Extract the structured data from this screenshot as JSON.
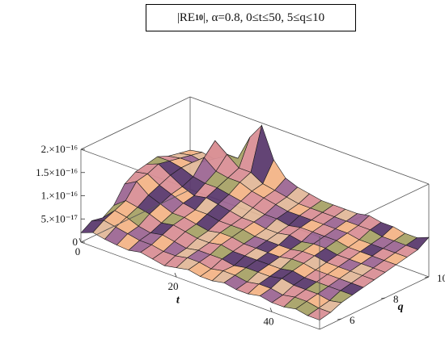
{
  "chart_data": {
    "type": "surface",
    "title": "|RE10|, α=0.8, 0≤t≤50, 5≤q≤10",
    "title_parts": {
      "prefix": "|RE",
      "subscript": "10",
      "suffix": "|, α=0.8, 0≤t≤50, 5≤q≤10"
    },
    "xlabel": "t",
    "ylabel": "q",
    "zlabel": "",
    "xlim": [
      0,
      50
    ],
    "ylim": [
      5,
      10
    ],
    "zlim": [
      0,
      2e-16
    ],
    "x_ticks": [
      "0",
      "20",
      "40"
    ],
    "x_tick_values": [
      0,
      20,
      40
    ],
    "y_ticks": [
      "6",
      "8",
      "10"
    ],
    "y_tick_values": [
      6,
      8,
      10
    ],
    "z_ticks": [
      "0",
      "5.×10⁻¹⁷",
      "1.×10⁻¹⁶",
      "1.5×10⁻¹⁶",
      "2.×10⁻¹⁶"
    ],
    "z_tick_values": [
      0,
      5e-17,
      1e-16,
      1.5e-16,
      2e-16
    ],
    "mesh_t": [
      0,
      2.5,
      5,
      7.5,
      10,
      12.5,
      15,
      17.5,
      20,
      22.5,
      25,
      27.5,
      30,
      32.5,
      35,
      37.5,
      40,
      42.5,
      45,
      47.5,
      50
    ],
    "mesh_q": [
      5,
      5.5,
      6,
      6.5,
      7,
      7.5,
      8,
      8.5,
      9,
      9.5,
      10
    ],
    "z_values": [
      [
        0.2,
        0.35,
        0.3,
        0.45,
        0.8,
        0.95,
        1.0,
        1.05,
        0.95,
        0.9,
        0.85
      ],
      [
        0.3,
        0.45,
        0.55,
        0.65,
        0.95,
        1.0,
        1.1,
        1.05,
        1.0,
        0.95,
        0.9
      ],
      [
        0.25,
        0.4,
        0.5,
        0.6,
        0.75,
        0.85,
        0.95,
        1.0,
        1.0,
        0.9,
        0.85
      ],
      [
        0.22,
        0.35,
        0.4,
        0.55,
        0.65,
        0.75,
        0.8,
        0.9,
        1.2,
        1.45,
        1.0
      ],
      [
        0.2,
        0.3,
        0.35,
        0.45,
        0.55,
        0.65,
        0.7,
        0.85,
        1.0,
        1.25,
        1.05
      ],
      [
        0.25,
        0.3,
        0.4,
        0.5,
        0.55,
        0.6,
        0.75,
        0.85,
        0.95,
        1.05,
        1.6
      ],
      [
        0.2,
        0.25,
        0.35,
        0.45,
        0.5,
        0.6,
        0.7,
        0.8,
        0.95,
        1.05,
        1.95
      ],
      [
        0.15,
        0.25,
        0.3,
        0.4,
        0.45,
        0.55,
        0.65,
        0.75,
        0.85,
        0.9,
        1.3
      ],
      [
        0.2,
        0.3,
        0.35,
        0.4,
        0.5,
        0.55,
        0.6,
        0.7,
        0.8,
        0.85,
        1.0
      ],
      [
        0.25,
        0.3,
        0.35,
        0.45,
        0.5,
        0.55,
        0.6,
        0.65,
        0.75,
        0.8,
        0.9
      ],
      [
        0.2,
        0.25,
        0.35,
        0.4,
        0.45,
        0.5,
        0.55,
        0.65,
        0.7,
        0.75,
        0.85
      ],
      [
        0.2,
        0.3,
        0.3,
        0.4,
        0.45,
        0.5,
        0.55,
        0.6,
        0.7,
        0.75,
        0.8
      ],
      [
        0.25,
        0.3,
        0.35,
        0.4,
        0.45,
        0.5,
        0.6,
        0.65,
        0.7,
        0.75,
        0.8
      ],
      [
        0.2,
        0.25,
        0.35,
        0.4,
        0.45,
        0.5,
        0.55,
        0.65,
        0.7,
        0.75,
        0.8
      ],
      [
        0.2,
        0.3,
        0.35,
        0.4,
        0.5,
        0.55,
        0.6,
        0.65,
        0.7,
        0.75,
        0.8
      ],
      [
        0.25,
        0.3,
        0.4,
        0.45,
        0.5,
        0.55,
        0.6,
        0.65,
        0.7,
        0.75,
        0.85
      ],
      [
        0.2,
        0.25,
        0.35,
        0.4,
        0.45,
        0.5,
        0.55,
        0.6,
        0.65,
        0.75,
        0.8
      ],
      [
        0.2,
        0.3,
        0.35,
        0.4,
        0.45,
        0.5,
        0.55,
        0.6,
        0.65,
        0.7,
        0.8
      ],
      [
        0.25,
        0.3,
        0.35,
        0.4,
        0.45,
        0.5,
        0.55,
        0.6,
        0.65,
        0.7,
        0.75
      ],
      [
        0.2,
        0.25,
        0.3,
        0.4,
        0.45,
        0.5,
        0.55,
        0.6,
        0.65,
        0.7,
        0.75
      ],
      [
        0.2,
        0.25,
        0.35,
        0.4,
        0.45,
        0.5,
        0.55,
        0.6,
        0.65,
        0.7,
        0.85
      ]
    ],
    "z_value_unit": "1e-16",
    "surface_colors": [
      "#f3b487",
      "#d98f96",
      "#9d6794",
      "#5b3a6e",
      "#e2b89a",
      "#a8a267"
    ],
    "mesh_color": "#1a1a1a",
    "box_color": "#555555",
    "grid": false,
    "legend": "none"
  }
}
